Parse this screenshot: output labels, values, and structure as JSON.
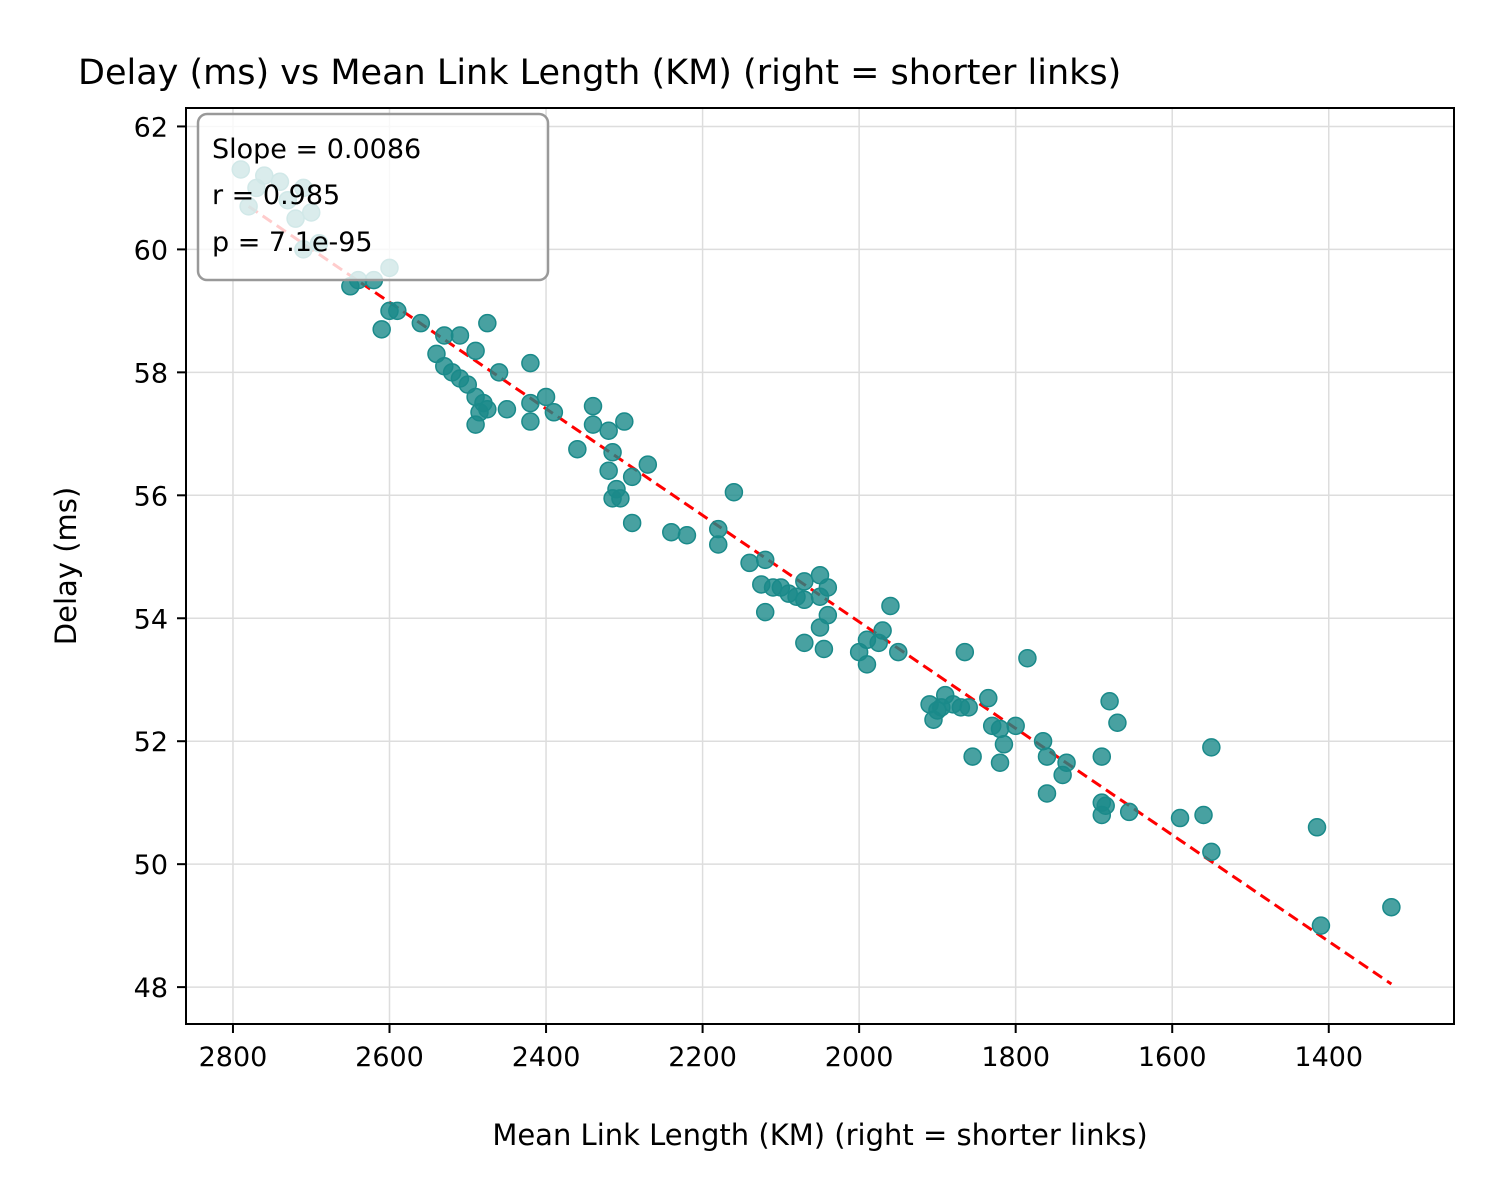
{
  "chart_data": {
    "type": "scatter",
    "title": "Delay (ms) vs Mean Link Length (KM) (right = shorter links)",
    "xlabel": "Mean Link Length (KM) (right = shorter links)",
    "ylabel": "Delay (ms)",
    "x_inverted": true,
    "xlim": [
      2860,
      1240
    ],
    "ylim": [
      47.4,
      62.3
    ],
    "xticks": [
      2800,
      2600,
      2400,
      2200,
      2000,
      1800,
      1600,
      1400
    ],
    "yticks": [
      48,
      50,
      52,
      54,
      56,
      58,
      60,
      62
    ],
    "grid": true,
    "point_color": "#1a8a8a",
    "fit_color": "#ff0000",
    "fit_line": {
      "x": [
        2780,
        1320
      ],
      "y": [
        60.7,
        48.05
      ],
      "style": "dashed"
    },
    "annotation": {
      "location": "top-left",
      "lines": [
        "Slope = 0.0086",
        "r = 0.985",
        "p = 7.1e-95"
      ]
    },
    "points": [
      [
        2790,
        61.3
      ],
      [
        2770,
        61.0
      ],
      [
        2780,
        60.7
      ],
      [
        2760,
        61.2
      ],
      [
        2740,
        61.1
      ],
      [
        2730,
        60.8
      ],
      [
        2720,
        60.5
      ],
      [
        2710,
        61.0
      ],
      [
        2700,
        60.6
      ],
      [
        2690,
        60.1
      ],
      [
        2710,
        60.0
      ],
      [
        2650,
        59.4
      ],
      [
        2640,
        59.5
      ],
      [
        2620,
        59.5
      ],
      [
        2600,
        59.7
      ],
      [
        2600,
        59.0
      ],
      [
        2590,
        59.0
      ],
      [
        2610,
        58.7
      ],
      [
        2560,
        58.8
      ],
      [
        2530,
        58.6
      ],
      [
        2510,
        58.6
      ],
      [
        2540,
        58.3
      ],
      [
        2530,
        58.1
      ],
      [
        2520,
        58.0
      ],
      [
        2510,
        57.9
      ],
      [
        2490,
        58.35
      ],
      [
        2475,
        58.8
      ],
      [
        2460,
        58.0
      ],
      [
        2500,
        57.8
      ],
      [
        2490,
        57.6
      ],
      [
        2480,
        57.5
      ],
      [
        2485,
        57.35
      ],
      [
        2475,
        57.4
      ],
      [
        2490,
        57.15
      ],
      [
        2450,
        57.4
      ],
      [
        2420,
        58.15
      ],
      [
        2420,
        57.5
      ],
      [
        2400,
        57.6
      ],
      [
        2390,
        57.35
      ],
      [
        2420,
        57.2
      ],
      [
        2340,
        57.45
      ],
      [
        2340,
        57.15
      ],
      [
        2320,
        57.05
      ],
      [
        2300,
        57.2
      ],
      [
        2360,
        56.75
      ],
      [
        2315,
        56.7
      ],
      [
        2320,
        56.4
      ],
      [
        2290,
        56.3
      ],
      [
        2270,
        56.5
      ],
      [
        2310,
        56.1
      ],
      [
        2315,
        55.95
      ],
      [
        2305,
        55.95
      ],
      [
        2290,
        55.55
      ],
      [
        2240,
        55.4
      ],
      [
        2220,
        55.35
      ],
      [
        2180,
        55.45
      ],
      [
        2180,
        55.2
      ],
      [
        2160,
        56.05
      ],
      [
        2140,
        54.9
      ],
      [
        2120,
        54.95
      ],
      [
        2125,
        54.55
      ],
      [
        2110,
        54.5
      ],
      [
        2100,
        54.5
      ],
      [
        2090,
        54.4
      ],
      [
        2080,
        54.35
      ],
      [
        2070,
        54.3
      ],
      [
        2070,
        54.6
      ],
      [
        2050,
        54.7
      ],
      [
        2040,
        54.5
      ],
      [
        2050,
        54.35
      ],
      [
        2120,
        54.1
      ],
      [
        2040,
        54.05
      ],
      [
        2050,
        53.85
      ],
      [
        2070,
        53.6
      ],
      [
        2045,
        53.5
      ],
      [
        1960,
        54.2
      ],
      [
        1970,
        53.8
      ],
      [
        1975,
        53.6
      ],
      [
        1990,
        53.65
      ],
      [
        2000,
        53.45
      ],
      [
        1990,
        53.25
      ],
      [
        1950,
        53.45
      ],
      [
        1865,
        53.45
      ],
      [
        1785,
        53.35
      ],
      [
        1910,
        52.6
      ],
      [
        1900,
        52.5
      ],
      [
        1905,
        52.35
      ],
      [
        1895,
        52.55
      ],
      [
        1890,
        52.75
      ],
      [
        1880,
        52.6
      ],
      [
        1870,
        52.55
      ],
      [
        1860,
        52.55
      ],
      [
        1835,
        52.7
      ],
      [
        1830,
        52.25
      ],
      [
        1820,
        52.2
      ],
      [
        1800,
        52.25
      ],
      [
        1815,
        51.95
      ],
      [
        1820,
        51.65
      ],
      [
        1855,
        51.75
      ],
      [
        1765,
        52.0
      ],
      [
        1760,
        51.75
      ],
      [
        1740,
        51.45
      ],
      [
        1735,
        51.65
      ],
      [
        1760,
        51.15
      ],
      [
        1690,
        51.75
      ],
      [
        1680,
        52.65
      ],
      [
        1670,
        52.3
      ],
      [
        1690,
        51.0
      ],
      [
        1685,
        50.95
      ],
      [
        1690,
        50.8
      ],
      [
        1655,
        50.85
      ],
      [
        1590,
        50.75
      ],
      [
        1560,
        50.8
      ],
      [
        1550,
        51.9
      ],
      [
        1550,
        50.2
      ],
      [
        1415,
        50.6
      ],
      [
        1410,
        49.0
      ],
      [
        1320,
        49.3
      ]
    ]
  }
}
